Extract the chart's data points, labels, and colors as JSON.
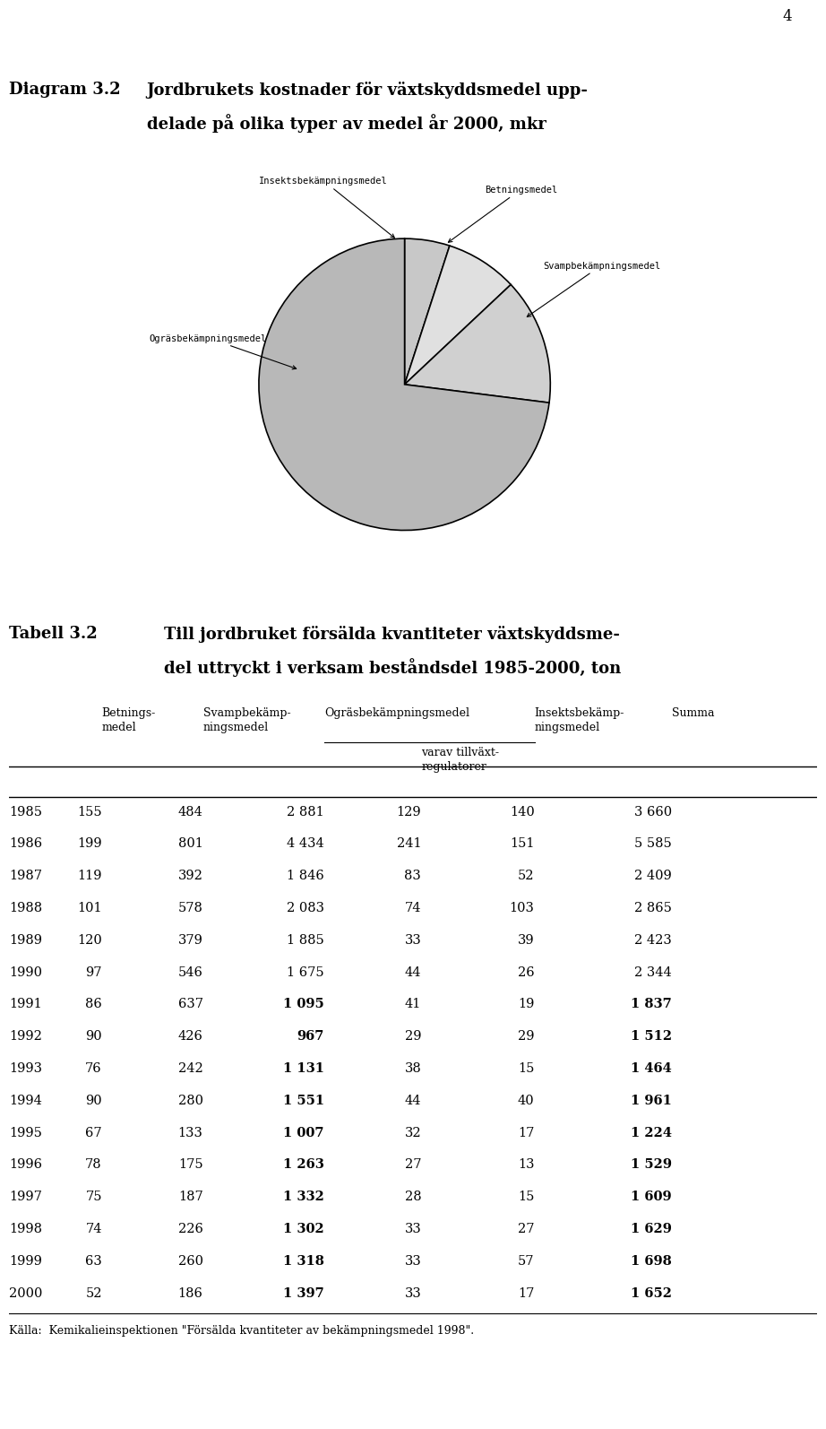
{
  "page_number": "4",
  "diagram_label": "Diagram 3.2",
  "diagram_title_line1": "Jordbrukets kostnader för växtskyddsmedel upp-",
  "diagram_title_line2": "delade på olika typer av medel år 2000, mkr",
  "pie_slices": [
    {
      "label": "Insektsbekämpningsmedel",
      "value": 5,
      "color": "#c8c8c8"
    },
    {
      "label": "Betningsmedel",
      "value": 8,
      "color": "#e0e0e0"
    },
    {
      "label": "Svampbekämpningsmedel",
      "value": 14,
      "color": "#d0d0d0"
    },
    {
      "label": "Ogräsbekämpningsmedel",
      "value": 73,
      "color": "#b8b8b8"
    }
  ],
  "table_label": "Tabell 3.2",
  "table_title_line1": "Till jordbruket försälda kvantiteter växtskyddsme-",
  "table_title_line2": "del uttryckt i verksam beståndsdel 1985-2000, ton",
  "rows": [
    [
      "1985",
      "155",
      "484",
      "2 881",
      "129",
      "140",
      "3 660",
      false
    ],
    [
      "1986",
      "199",
      "801",
      "4 434",
      "241",
      "151",
      "5 585",
      false
    ],
    [
      "1987",
      "119",
      "392",
      "1 846",
      "83",
      "52",
      "2 409",
      false
    ],
    [
      "1988",
      "101",
      "578",
      "2 083",
      "74",
      "103",
      "2 865",
      false
    ],
    [
      "1989",
      "120",
      "379",
      "1 885",
      "33",
      "39",
      "2 423",
      false
    ],
    [
      "1990",
      "97",
      "546",
      "1 675",
      "44",
      "26",
      "2 344",
      false
    ],
    [
      "1991",
      "86",
      "637",
      "1 095",
      "41",
      "19",
      "1 837",
      true
    ],
    [
      "1992",
      "90",
      "426",
      "967",
      "29",
      "29",
      "1 512",
      true
    ],
    [
      "1993",
      "76",
      "242",
      "1 131",
      "38",
      "15",
      "1 464",
      true
    ],
    [
      "1994",
      "90",
      "280",
      "1 551",
      "44",
      "40",
      "1 961",
      true
    ],
    [
      "1995",
      "67",
      "133",
      "1 007",
      "32",
      "17",
      "1 224",
      true
    ],
    [
      "1996",
      "78",
      "175",
      "1 263",
      "27",
      "13",
      "1 529",
      true
    ],
    [
      "1997",
      "75",
      "187",
      "1 332",
      "28",
      "15",
      "1 609",
      true
    ],
    [
      "1998",
      "74",
      "226",
      "1 302",
      "33",
      "27",
      "1 629",
      true
    ],
    [
      "1999",
      "63",
      "260",
      "1 318",
      "33",
      "57",
      "1 698",
      true
    ],
    [
      "2000",
      "52",
      "186",
      "1 397",
      "33",
      "17",
      "1 652",
      true
    ]
  ],
  "footer": "Källa:  Kemikalieinspektionen \"Försälda kvantiteter av bekämpningsmedel 1998\".",
  "background_color": "#ffffff",
  "text_color": "#000000"
}
